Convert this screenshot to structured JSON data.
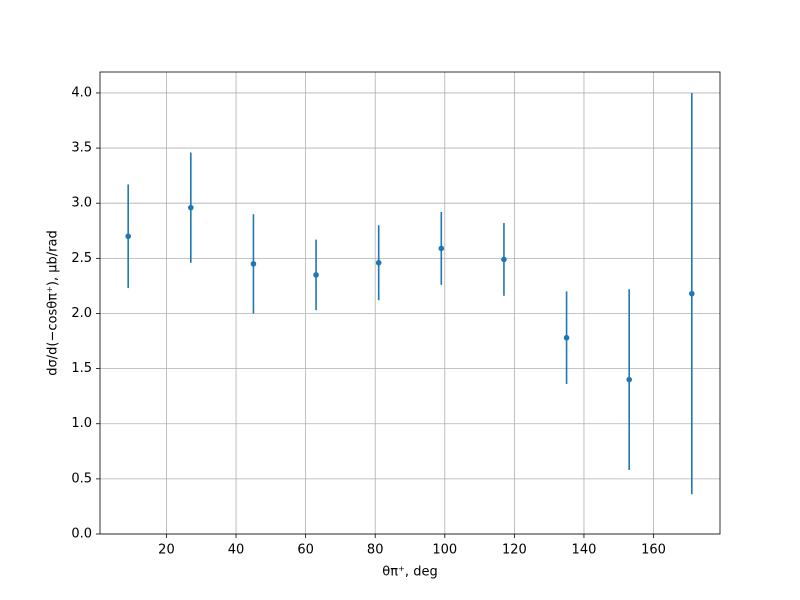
{
  "chart_data": {
    "type": "errorbar",
    "x_label": "θπ⁺, deg",
    "y_label": "dσ/d(−cosθπ⁺), μb/rad",
    "x": [
      9,
      27,
      45,
      63,
      81,
      99,
      117,
      135,
      153,
      171
    ],
    "values": [
      2.7,
      2.96,
      2.45,
      2.35,
      2.46,
      2.59,
      2.49,
      1.78,
      1.4,
      2.18
    ],
    "errors": [
      0.47,
      0.5,
      0.45,
      0.32,
      0.34,
      0.33,
      0.33,
      0.42,
      0.82,
      1.82
    ],
    "color": "#1f77b4",
    "xlim": [
      0.9,
      179.1
    ],
    "ylim": [
      0,
      4.19
    ],
    "xticks": [
      20,
      40,
      60,
      80,
      100,
      120,
      140,
      160
    ],
    "yticks": [
      {
        "value": 0,
        "label": "0.0"
      },
      0.5,
      {
        "value": 1,
        "label": "1.0"
      },
      1.5,
      {
        "value": 2,
        "label": "2.0"
      },
      2.5,
      {
        "value": 3,
        "label": "3.0"
      },
      3.5,
      {
        "value": 4,
        "label": "4.0"
      }
    ],
    "grid": true
  }
}
